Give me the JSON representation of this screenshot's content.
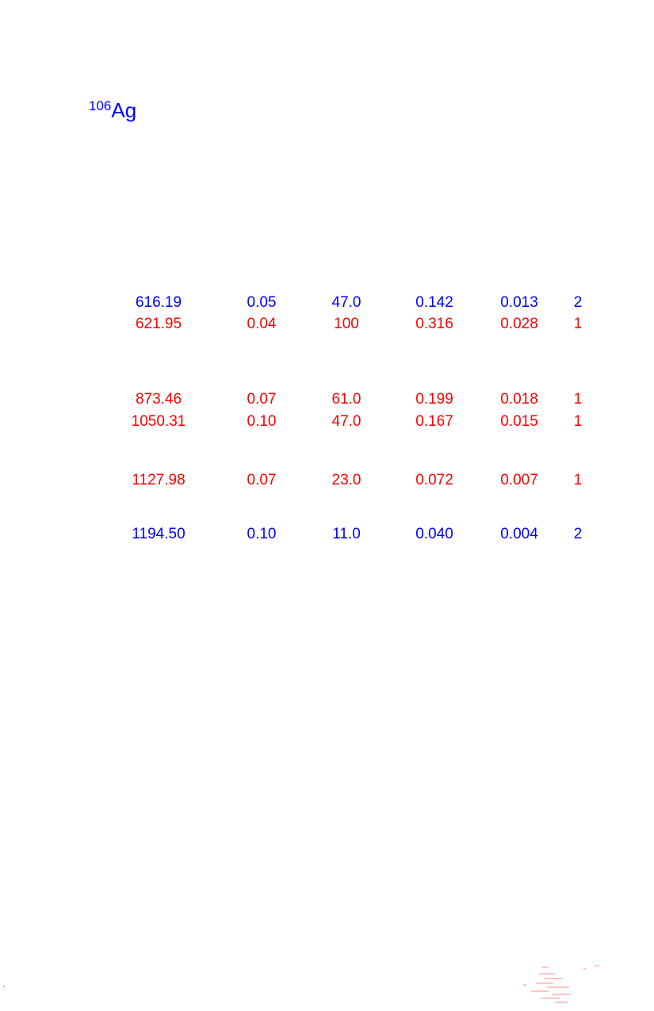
{
  "document": {
    "title": {
      "mass_number": "106",
      "element": "Ag",
      "color": "#0000ff"
    },
    "colors": {
      "red": "#ff0000",
      "blue": "#0000ff"
    },
    "rows": [
      {
        "color": "#0000ff",
        "cells": [
          "616.19",
          "0.05",
          "47.0",
          "0.142",
          "0.013",
          "2"
        ]
      },
      {
        "color": "#ff0000",
        "cells": [
          "621.95",
          "0.04",
          "100",
          "0.316",
          "0.028",
          "1"
        ]
      },
      {
        "color": "#ff0000",
        "cells": [
          "873.46",
          "0.07",
          "61.0",
          "0.199",
          "0.018",
          "1"
        ]
      },
      {
        "color": "#ff0000",
        "cells": [
          "1050.31",
          "0.10",
          "47.0",
          "0.167",
          "0.015",
          "1"
        ]
      },
      {
        "color": "#ff0000",
        "cells": [
          "1127.98",
          "0.07",
          "23.0",
          "0.072",
          "0.007",
          "1"
        ]
      },
      {
        "color": "#0000ff",
        "cells": [
          "1194.50",
          "0.10",
          "11.0",
          "0.040",
          "0.004",
          "2"
        ]
      }
    ]
  }
}
